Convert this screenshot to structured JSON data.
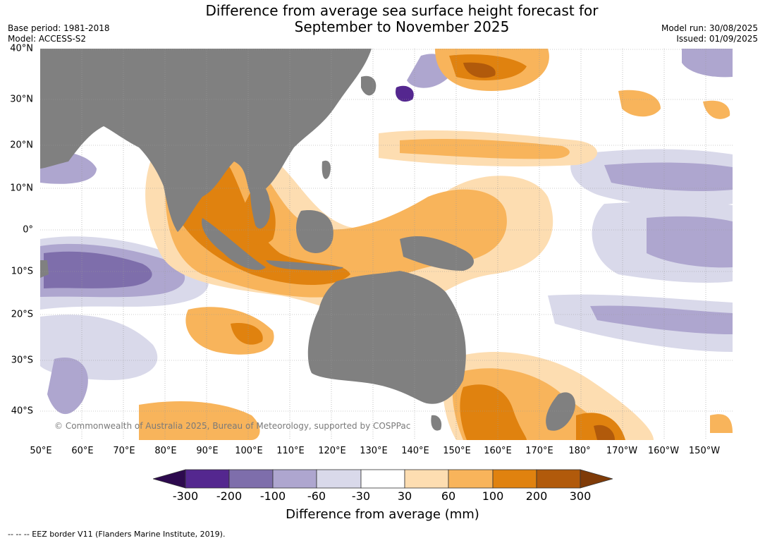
{
  "title_line1": "Difference from average sea surface height forecast for",
  "title_line2": "September to November 2025",
  "meta": {
    "base_period": "Base period: 1981-2018",
    "model": "Model: ACCESS-S2",
    "model_run": "Model run: 30/08/2025",
    "issued": "Issued: 01/09/2025"
  },
  "map": {
    "copyright": "© Commonwealth of Australia 2025, Bureau of Meteorology, supported by COSPPac",
    "lat_labels": [
      "40°N",
      "30°N",
      "20°N",
      "10°N",
      "0°",
      "10°S",
      "20°S",
      "30°S",
      "40°S"
    ],
    "lon_labels": [
      "50°E",
      "60°E",
      "70°E",
      "80°E",
      "90°E",
      "100°E",
      "110°E",
      "120°E",
      "130°E",
      "140°E",
      "150°E",
      "160°E",
      "170°E",
      "180°",
      "170°W",
      "160°W",
      "150°W"
    ],
    "land_color": "#808080",
    "ocean_color": "#ffffff"
  },
  "colorbar": {
    "label": "Difference from average (mm)",
    "tick_labels": [
      "-300",
      "-200",
      "-100",
      "-60",
      "-30",
      "30",
      "60",
      "100",
      "200",
      "300"
    ],
    "colors": [
      "#2d0a4e",
      "#54278f",
      "#7e6eab",
      "#aea6cf",
      "#d9d9ea",
      "#ffffff",
      "#fdddb1",
      "#f8b45b",
      "#e0820f",
      "#b15a0b",
      "#7f3b08"
    ]
  },
  "footnote": "--  --  -- EEZ border V11 (Flanders Marine Institute, 2019)."
}
